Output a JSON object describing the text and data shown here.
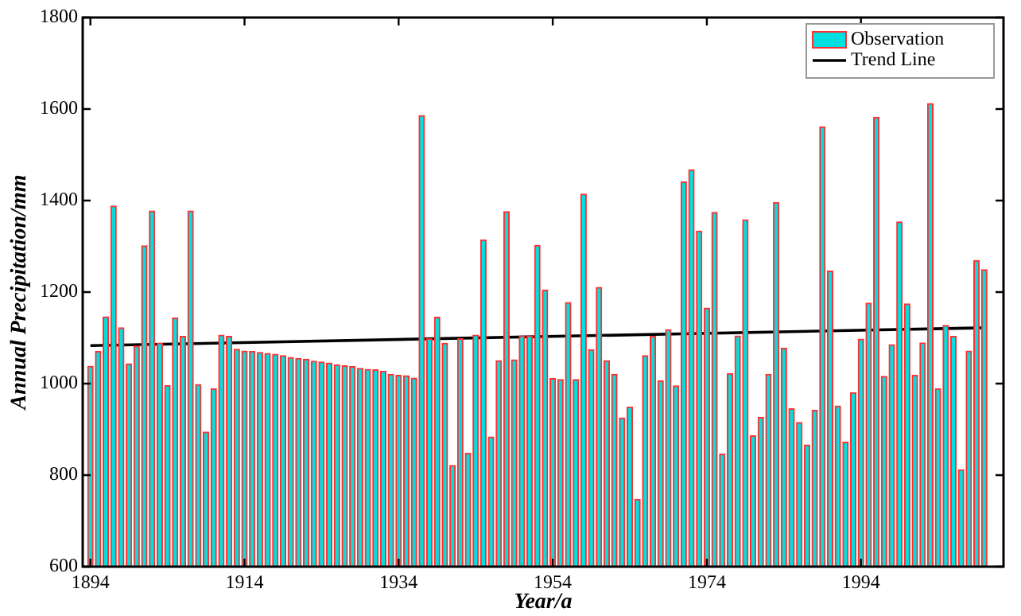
{
  "chart_data": {
    "type": "bar",
    "xlabel": "Year/a",
    "ylabel": "Annual Precipitation/mm",
    "xlim": [
      1893,
      2012.5
    ],
    "xticks": [
      1894,
      1914,
      1934,
      1954,
      1974,
      1994
    ],
    "ylim": [
      600,
      1800
    ],
    "yticks": [
      600,
      800,
      1000,
      1200,
      1400,
      1600,
      1800
    ],
    "grid": false,
    "legend": "top right",
    "series": [
      {
        "name": "Observation",
        "color": "#00e0e0",
        "x": [
          1894,
          1895,
          1896,
          1897,
          1898,
          1899,
          1900,
          1901,
          1902,
          1903,
          1904,
          1905,
          1906,
          1907,
          1908,
          1909,
          1910,
          1911,
          1912,
          1913,
          1914,
          1915,
          1916,
          1917,
          1918,
          1919,
          1920,
          1921,
          1922,
          1923,
          1924,
          1925,
          1926,
          1927,
          1928,
          1929,
          1930,
          1931,
          1932,
          1933,
          1934,
          1935,
          1936,
          1937,
          1938,
          1939,
          1940,
          1941,
          1942,
          1943,
          1944,
          1945,
          1946,
          1947,
          1948,
          1949,
          1950,
          1951,
          1952,
          1953,
          1954,
          1955,
          1956,
          1957,
          1958,
          1959,
          1960,
          1961,
          1962,
          1963,
          1964,
          1965,
          1966,
          1967,
          1968,
          1969,
          1970,
          1971,
          1972,
          1973,
          1974,
          1975,
          1976,
          1977,
          1978,
          1979,
          1980,
          1981,
          1982,
          1983,
          1984,
          1985,
          1986,
          1987,
          1988,
          1989,
          1990,
          1991,
          1992,
          1993,
          1994,
          1995,
          1996,
          1997,
          1998,
          1999,
          2000,
          2001,
          2002,
          2003,
          2004,
          2005,
          2006,
          2007,
          2008,
          2009,
          2010
        ],
        "values": [
          1038,
          1070,
          1146,
          1388,
          1122,
          1043,
          1082,
          1301,
          1377,
          1088,
          996,
          1143,
          1103,
          1377,
          998,
          894,
          989,
          1106,
          1103,
          1075,
          1071,
          1070,
          1068,
          1066,
          1064,
          1061,
          1057,
          1055,
          1053,
          1049,
          1047,
          1045,
          1041,
          1039,
          1037,
          1033,
          1031,
          1030,
          1027,
          1020,
          1018,
          1017,
          1012,
          1586,
          1098,
          1145,
          1088,
          821,
          1098,
          848,
          1106,
          1314,
          883,
          1050,
          1376,
          1052,
          1104,
          1104,
          1302,
          1204,
          1011,
          1009,
          1177,
          1009,
          1414,
          1074,
          1210,
          1050,
          1020,
          925,
          949,
          747,
          1061,
          1103,
          1006,
          1118,
          995,
          1441,
          1467,
          1333,
          1165,
          1374,
          846,
          1022,
          1104,
          1358,
          886,
          926,
          1020,
          1396,
          1077,
          945,
          915,
          866,
          942,
          1561,
          1246,
          951,
          872,
          980,
          1097,
          1176,
          1582,
          1016,
          1085,
          1353,
          1174,
          1018,
          1089,
          1612,
          989,
          1127,
          1103,
          812,
          1071,
          1269,
          1249
        ]
      },
      {
        "name": "Trend Line",
        "type": "line",
        "color": "#000000",
        "line_style": "solid",
        "marker": "none",
        "x": [
          1894,
          2010
        ],
        "values": [
          1083,
          1122
        ]
      }
    ]
  }
}
